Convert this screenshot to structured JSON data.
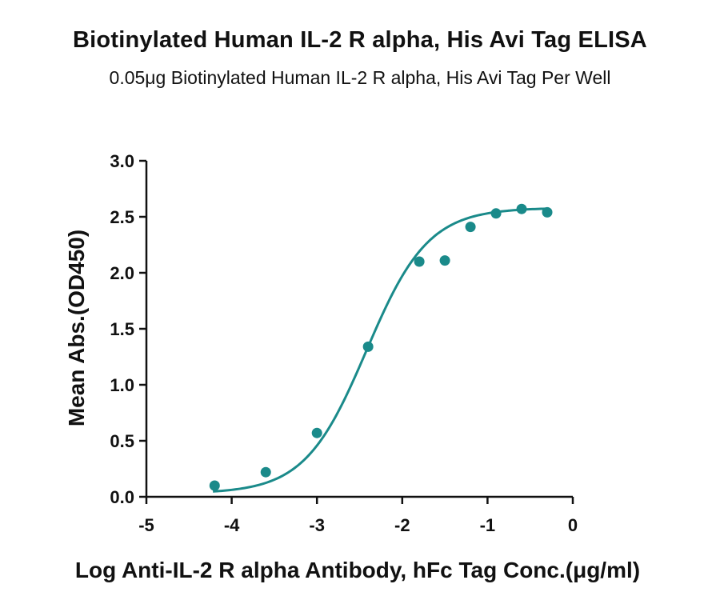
{
  "chart_data": {
    "type": "scatter",
    "title": "Biotinylated Human IL-2 R alpha, His Avi Tag ELISA",
    "subtitle": "0.05μg Biotinylated Human IL-2 R alpha, His Avi Tag Per Well",
    "xlabel": "Log Anti-IL-2 R alpha Antibody, hFc Tag Conc.(μg/ml)",
    "ylabel": "Mean Abs.(OD450)",
    "xlim": [
      -5,
      0
    ],
    "ylim": [
      0,
      3.0
    ],
    "x_ticks": [
      "-5",
      "-4",
      "-3",
      "-2",
      "-1",
      "0"
    ],
    "y_ticks": [
      "0.0",
      "0.5",
      "1.0",
      "1.5",
      "2.0",
      "2.5",
      "3.0"
    ],
    "grid": false,
    "series": [
      {
        "color": "#1a8a8a",
        "points": [
          {
            "x": -4.2,
            "y": 0.1
          },
          {
            "x": -3.6,
            "y": 0.22
          },
          {
            "x": -3.0,
            "y": 0.57
          },
          {
            "x": -2.4,
            "y": 1.34
          },
          {
            "x": -1.8,
            "y": 2.1
          },
          {
            "x": -1.5,
            "y": 2.11
          },
          {
            "x": -1.2,
            "y": 2.41
          },
          {
            "x": -0.9,
            "y": 2.53
          },
          {
            "x": -0.6,
            "y": 2.57
          },
          {
            "x": -0.3,
            "y": 2.54
          }
        ],
        "fit": {
          "model": "4PL",
          "bottom": 0.03,
          "top": 2.58,
          "log_ec50": -2.42,
          "hill": 1.2
        }
      }
    ]
  }
}
